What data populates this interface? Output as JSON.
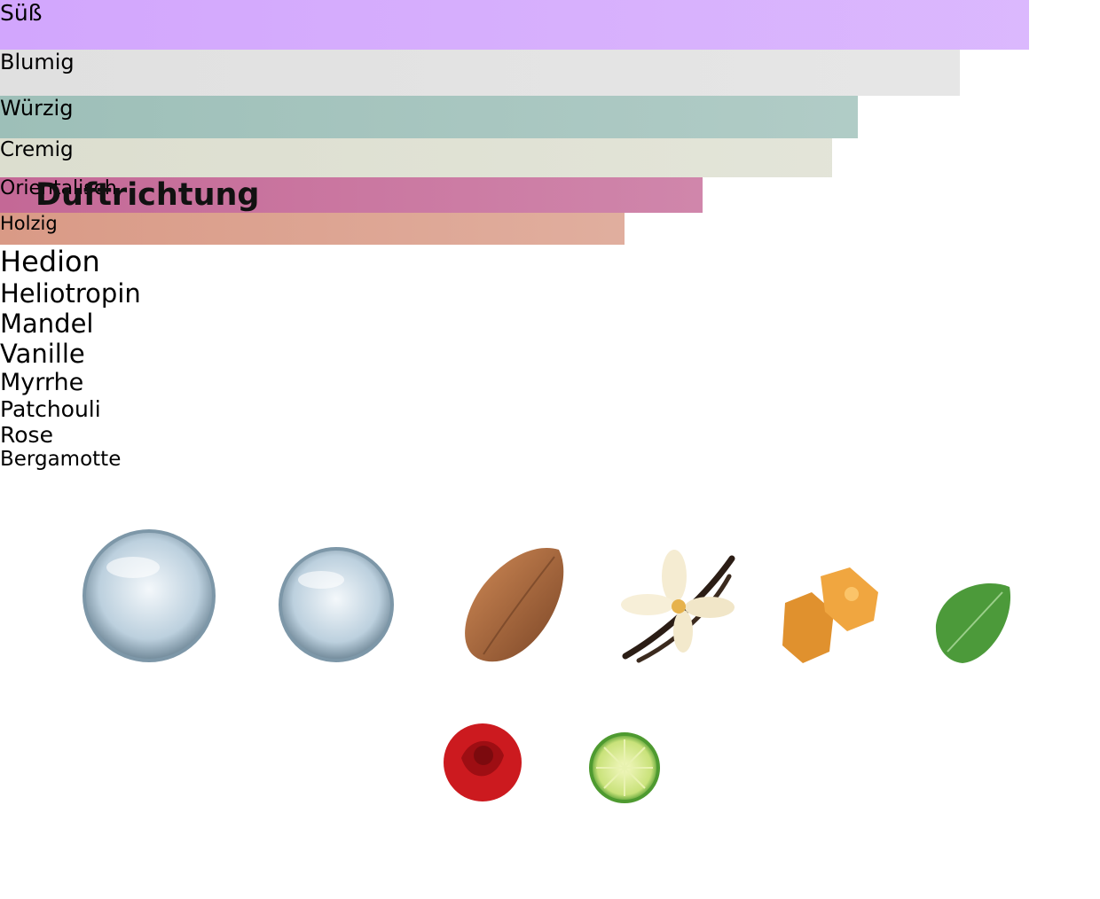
{
  "title": "Duftrichtung",
  "accords": [
    {
      "name": "Süß",
      "value": 100,
      "color": "#d2a6fd"
    },
    {
      "name": "Blumig",
      "value": 93.3,
      "color": "#e0e0e0"
    },
    {
      "name": "Würzig",
      "value": 83.4,
      "color": "#9dbfb8"
    },
    {
      "name": "Cremig",
      "value": 80.9,
      "color": "#dcdecf"
    },
    {
      "name": "Orientalisch",
      "value": 68.3,
      "color": "#c46896"
    },
    {
      "name": "Holzig",
      "value": 60.7,
      "color": "#d99a86"
    }
  ],
  "notes": [
    "Hedion",
    "Heliotropin",
    "Mandel",
    "Vanille",
    "Myrrhe",
    "Patchouli",
    "Rose",
    "Bergamotte"
  ]
}
